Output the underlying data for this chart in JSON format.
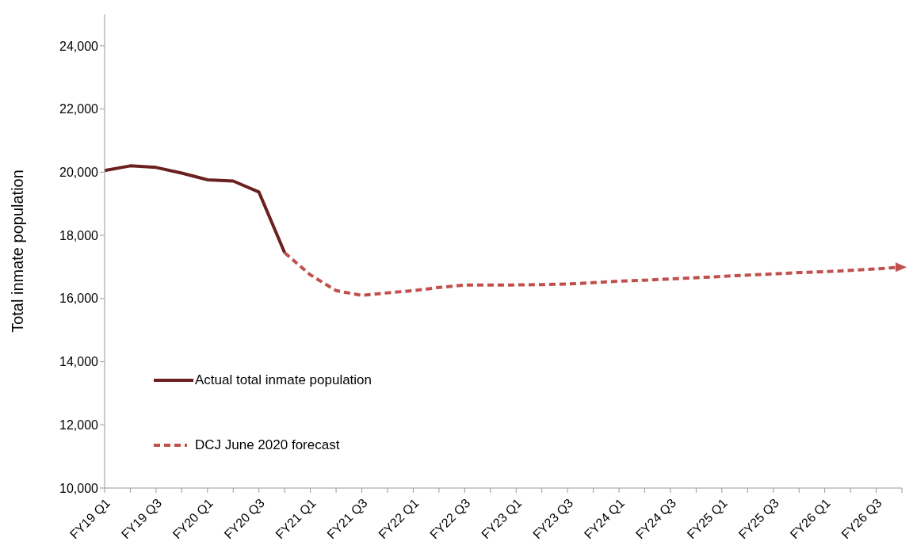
{
  "chart_data": {
    "type": "line",
    "ylabel": "Total inmate population",
    "categories": [
      "FY19 Q1",
      null,
      "FY19 Q3",
      null,
      "FY20 Q1",
      null,
      "FY20 Q3",
      null,
      "FY21 Q1",
      null,
      "FY21 Q3",
      null,
      "FY22 Q1",
      null,
      "FY22 Q3",
      null,
      "FY23 Q1",
      null,
      "FY23 Q3",
      null,
      "FY24 Q1",
      null,
      "FY24 Q3",
      null,
      "FY25 Q1",
      null,
      "FY25 Q3",
      null,
      "FY26 Q1",
      null,
      "FY26 Q3",
      null
    ],
    "series": [
      {
        "name": "Actual total inmate population",
        "color": "#6b1f1f",
        "line_style": "solid",
        "values": [
          20050,
          20200,
          20150,
          19970,
          19760,
          19720,
          19370,
          17450,
          null,
          null,
          null,
          null,
          null,
          null,
          null,
          null,
          null,
          null,
          null,
          null,
          null,
          null,
          null,
          null,
          null,
          null,
          null,
          null,
          null,
          null,
          null,
          null
        ]
      },
      {
        "name": "DCJ June 2020 forecast",
        "color": "#c0504d",
        "line_style": "dashed",
        "values": [
          null,
          null,
          null,
          null,
          null,
          null,
          null,
          17450,
          16750,
          16250,
          16100,
          16180,
          16250,
          16350,
          16430,
          16430,
          16430,
          16440,
          16460,
          16500,
          16550,
          16580,
          16620,
          16660,
          16700,
          16740,
          16780,
          16820,
          16850,
          16890,
          16940,
          16990
        ]
      }
    ],
    "ylim": [
      10000,
      25000
    ],
    "yticks": [
      {
        "value": 10000,
        "label": "10,000"
      },
      {
        "value": 12000,
        "label": "12,000"
      },
      {
        "value": 14000,
        "label": "14,000"
      },
      {
        "value": 16000,
        "label": "16,000"
      },
      {
        "value": 18000,
        "label": "18,000"
      },
      {
        "value": 20000,
        "label": "20,000"
      },
      {
        "value": 22000,
        "label": "22,000"
      },
      {
        "value": 24000,
        "label": "24,000"
      }
    ],
    "legend": "bottom left",
    "marker": "none"
  }
}
